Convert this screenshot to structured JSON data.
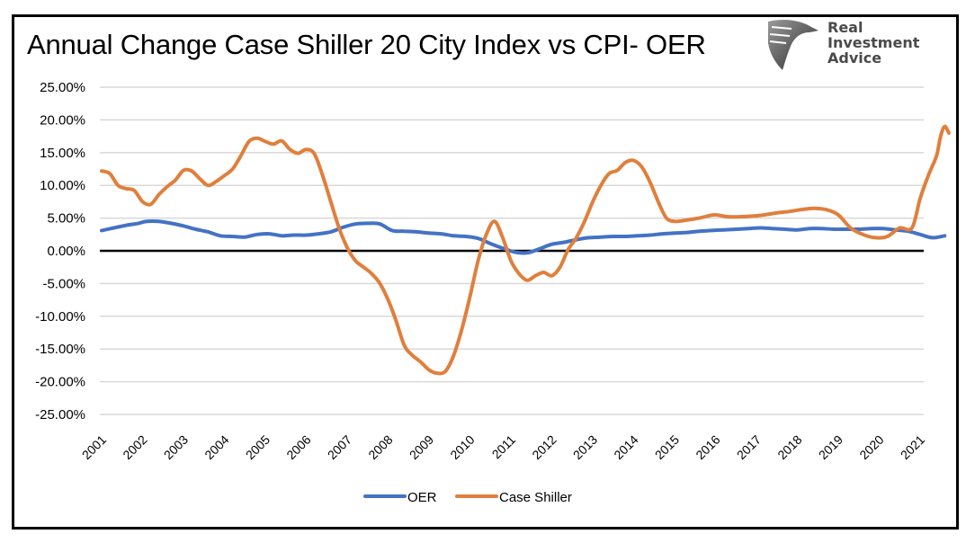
{
  "chart_data": {
    "type": "line",
    "title": "Annual Change Case Shiller 20 City Index vs CPI- OER",
    "xlabel": "",
    "ylabel": "",
    "ylim": [
      -25,
      25
    ],
    "ytick_step": 5,
    "yticks": [
      "25.00%",
      "20.00%",
      "15.00%",
      "10.00%",
      "5.00%",
      "0.00%",
      "-5.00%",
      "-10.00%",
      "-15.00%",
      "-20.00%",
      "-25.00%"
    ],
    "xlim": [
      2001.0,
      2021.75
    ],
    "xticks": [
      "2001",
      "2002",
      "2003",
      "2004",
      "2005",
      "2006",
      "2007",
      "2008",
      "2009",
      "2010",
      "2011",
      "2012",
      "2013",
      "2014",
      "2015",
      "2016",
      "2017",
      "2018",
      "2019",
      "2020",
      "2021"
    ],
    "grid": true,
    "legend": "bottom-center",
    "series": [
      {
        "name": "OER",
        "color": "#4472C4",
        "x": [
          2001.0,
          2001.3,
          2001.6,
          2001.9,
          2002.1,
          2002.4,
          2002.7,
          2003.0,
          2003.3,
          2003.6,
          2003.9,
          2004.2,
          2004.5,
          2004.8,
          2005.1,
          2005.4,
          2005.7,
          2006.0,
          2006.3,
          2006.6,
          2006.9,
          2007.2,
          2007.5,
          2007.8,
          2008.1,
          2008.4,
          2008.7,
          2009.0,
          2009.3,
          2009.6,
          2009.9,
          2010.2,
          2010.5,
          2010.8,
          2011.1,
          2011.4,
          2011.7,
          2012.0,
          2012.3,
          2012.6,
          2012.9,
          2013.2,
          2013.5,
          2013.8,
          2014.1,
          2014.4,
          2014.7,
          2015.0,
          2015.3,
          2015.6,
          2015.9,
          2016.2,
          2016.5,
          2016.8,
          2017.1,
          2017.4,
          2017.7,
          2018.0,
          2018.3,
          2018.6,
          2018.9,
          2019.2,
          2019.5,
          2019.8,
          2020.1,
          2020.4,
          2020.7,
          2021.0,
          2021.3,
          2021.6
        ],
        "y": [
          3.1,
          3.5,
          3.9,
          4.2,
          4.5,
          4.5,
          4.2,
          3.8,
          3.3,
          2.9,
          2.3,
          2.2,
          2.1,
          2.5,
          2.6,
          2.3,
          2.4,
          2.4,
          2.6,
          2.9,
          3.6,
          4.1,
          4.2,
          4.1,
          3.1,
          3.0,
          2.9,
          2.7,
          2.6,
          2.3,
          2.2,
          1.9,
          1.1,
          0.4,
          -0.2,
          -0.3,
          0.3,
          1.0,
          1.3,
          1.7,
          2.0,
          2.1,
          2.2,
          2.2,
          2.3,
          2.4,
          2.6,
          2.7,
          2.8,
          3.0,
          3.1,
          3.2,
          3.3,
          3.4,
          3.5,
          3.4,
          3.3,
          3.2,
          3.4,
          3.4,
          3.3,
          3.3,
          3.3,
          3.4,
          3.4,
          3.2,
          3.0,
          2.5,
          2.0,
          2.3
        ]
      },
      {
        "name": "Case Shiller",
        "color": "#E07F3C",
        "x": [
          2001.0,
          2001.2,
          2001.4,
          2001.6,
          2001.8,
          2002.0,
          2002.2,
          2002.4,
          2002.6,
          2002.8,
          2003.0,
          2003.2,
          2003.4,
          2003.6,
          2003.8,
          2004.0,
          2004.2,
          2004.4,
          2004.6,
          2004.8,
          2005.0,
          2005.2,
          2005.4,
          2005.6,
          2005.8,
          2006.0,
          2006.2,
          2006.4,
          2006.6,
          2006.8,
          2007.0,
          2007.2,
          2007.4,
          2007.6,
          2007.8,
          2008.0,
          2008.2,
          2008.4,
          2008.6,
          2008.8,
          2009.0,
          2009.2,
          2009.4,
          2009.6,
          2009.8,
          2010.0,
          2010.2,
          2010.4,
          2010.6,
          2010.8,
          2011.0,
          2011.2,
          2011.4,
          2011.6,
          2011.8,
          2012.0,
          2012.2,
          2012.4,
          2012.6,
          2012.8,
          2013.0,
          2013.2,
          2013.4,
          2013.6,
          2013.8,
          2014.0,
          2014.2,
          2014.4,
          2014.6,
          2014.8,
          2015.0,
          2015.2,
          2015.4,
          2015.6,
          2015.8,
          2016.0,
          2016.3,
          2016.6,
          2016.9,
          2017.2,
          2017.5,
          2017.8,
          2018.1,
          2018.4,
          2018.7,
          2019.0,
          2019.3,
          2019.6,
          2019.9,
          2020.2,
          2020.5,
          2020.8,
          2021.0,
          2021.2,
          2021.4,
          2021.5,
          2021.6,
          2021.7
        ],
        "y": [
          12.2,
          11.8,
          10.0,
          9.5,
          9.2,
          7.5,
          7.1,
          8.6,
          9.8,
          10.8,
          12.3,
          12.2,
          11.0,
          10.0,
          10.6,
          11.5,
          12.5,
          14.5,
          16.7,
          17.2,
          16.7,
          16.3,
          16.8,
          15.5,
          14.9,
          15.5,
          14.8,
          11.5,
          7.5,
          3.5,
          0.5,
          -1.5,
          -2.5,
          -3.5,
          -5.0,
          -7.5,
          -10.8,
          -14.5,
          -16.0,
          -17.0,
          -18.2,
          -18.7,
          -18.4,
          -16.0,
          -12.0,
          -7.0,
          -1.5,
          2.5,
          4.5,
          2.0,
          -1.5,
          -3.5,
          -4.5,
          -3.8,
          -3.3,
          -3.8,
          -2.5,
          0.2,
          2.0,
          4.5,
          7.5,
          10.0,
          11.8,
          12.3,
          13.5,
          13.8,
          12.8,
          10.5,
          7.5,
          5.0,
          4.5,
          4.6,
          4.8,
          5.0,
          5.3,
          5.5,
          5.2,
          5.2,
          5.3,
          5.5,
          5.8,
          6.0,
          6.3,
          6.5,
          6.3,
          5.5,
          3.5,
          2.5,
          2.0,
          2.2,
          3.5,
          3.5,
          8.0,
          11.5,
          14.5,
          17.5,
          19.0,
          18.0
        ]
      }
    ]
  },
  "branding": {
    "line1": "Real",
    "line2": "Investment",
    "line3": "Advice",
    "logo_icon": "eagle-shield-icon"
  }
}
